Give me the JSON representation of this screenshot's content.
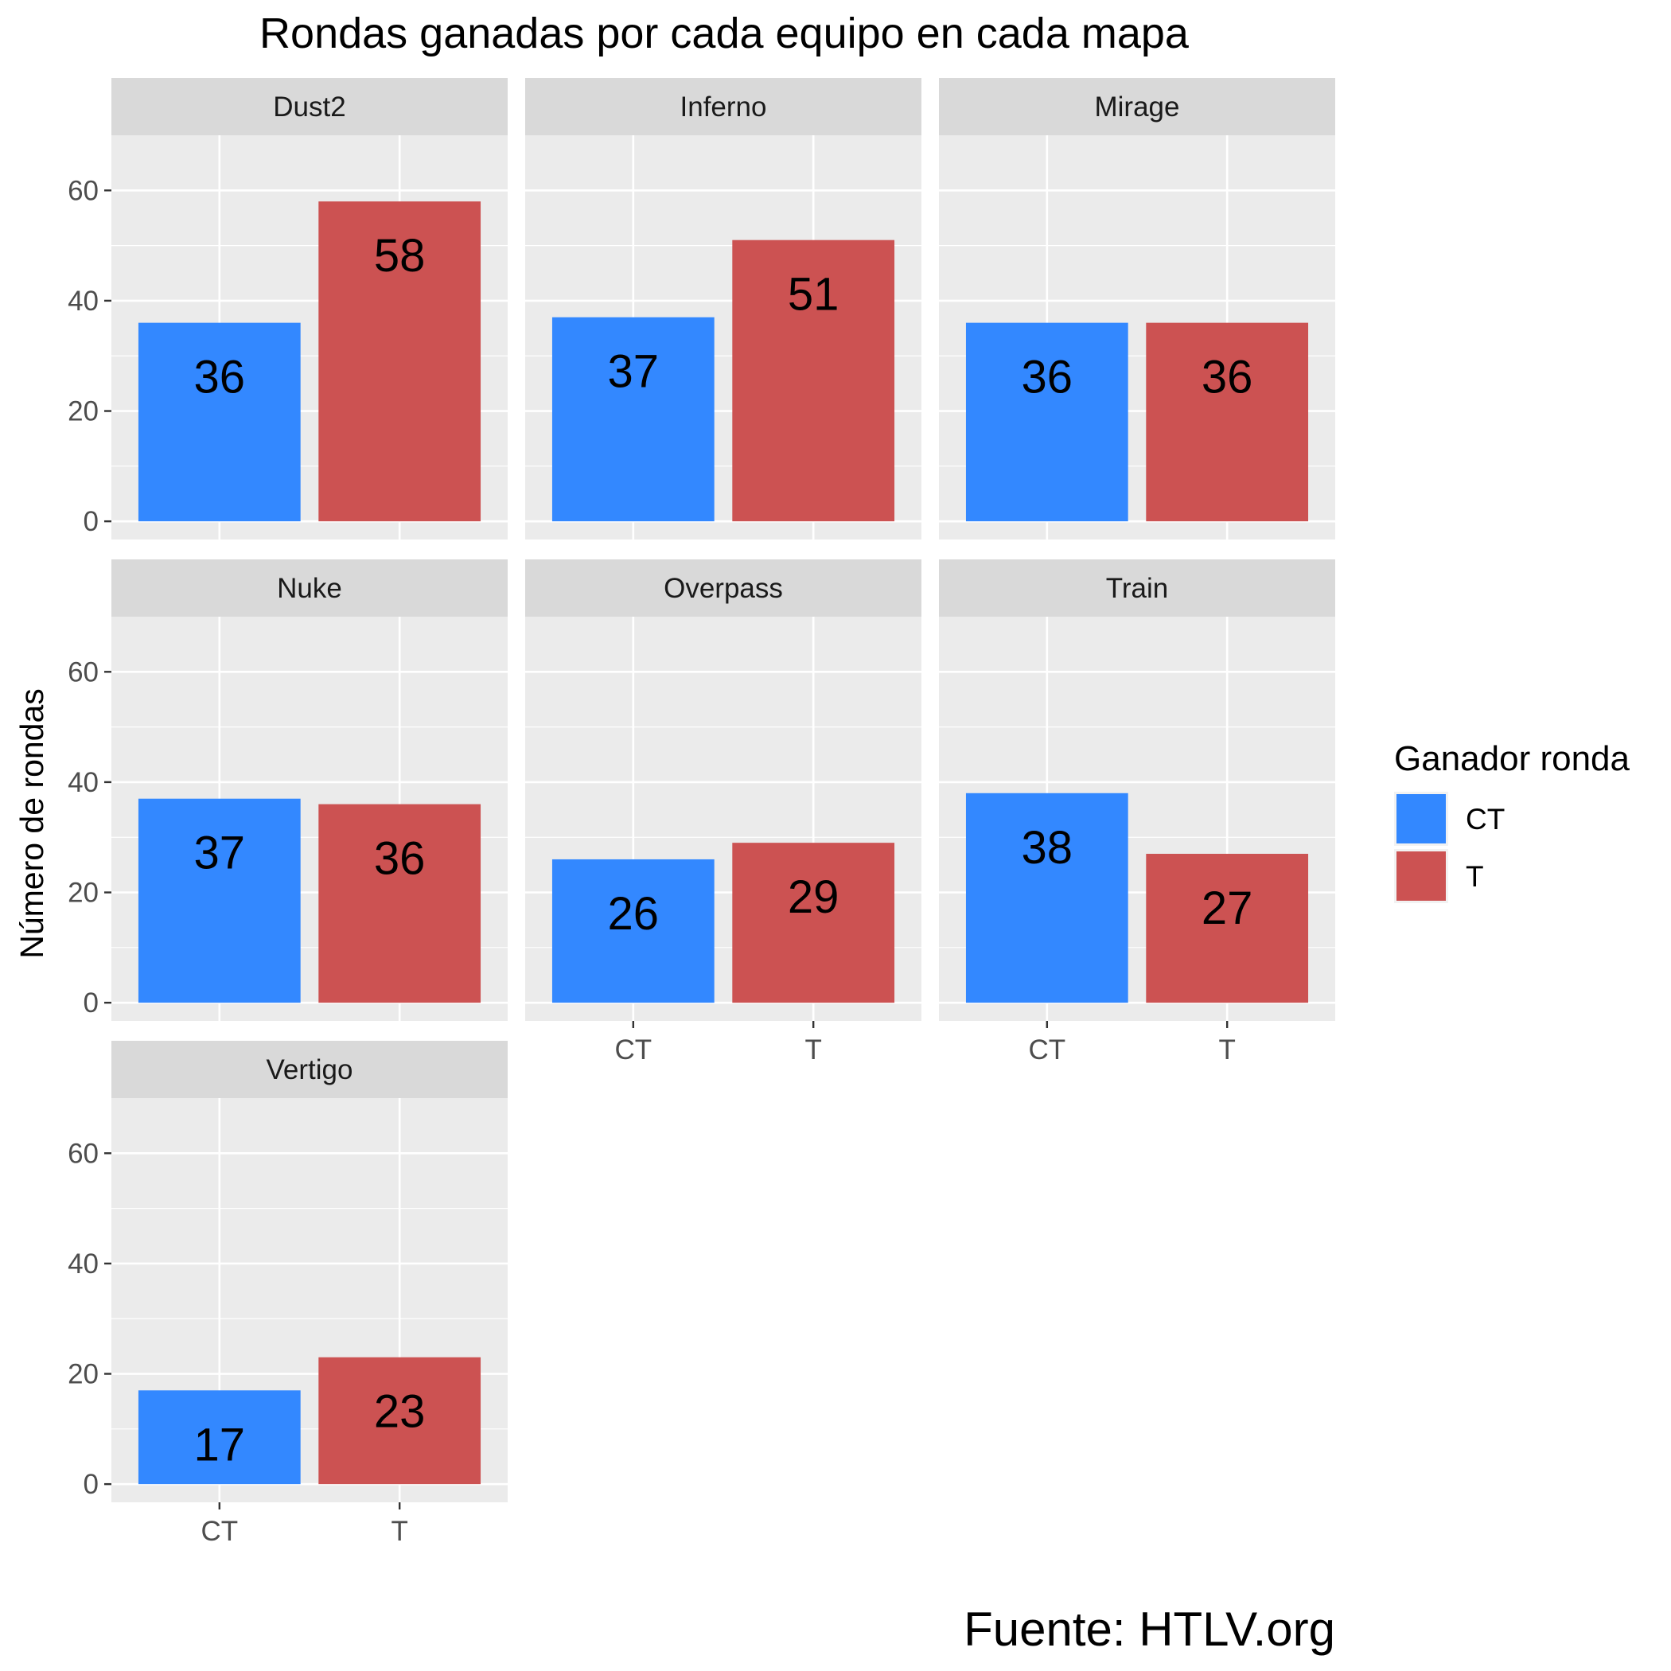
{
  "chart_data": {
    "type": "bar",
    "title": "Rondas ganadas por cada equipo en cada mapa",
    "ylabel": "Número de rondas",
    "xlabel": "",
    "ylim": [
      0,
      70
    ],
    "yticks": [
      0,
      20,
      40,
      60
    ],
    "categories": [
      "CT",
      "T"
    ],
    "facets": [
      {
        "name": "Dust2",
        "values": [
          36,
          58
        ]
      },
      {
        "name": "Inferno",
        "values": [
          37,
          51
        ]
      },
      {
        "name": "Mirage",
        "values": [
          36,
          36
        ]
      },
      {
        "name": "Nuke",
        "values": [
          37,
          36
        ]
      },
      {
        "name": "Overpass",
        "values": [
          26,
          29
        ]
      },
      {
        "name": "Train",
        "values": [
          38,
          27
        ]
      },
      {
        "name": "Vertigo",
        "values": [
          17,
          23
        ]
      }
    ],
    "legend": {
      "title": "Ganador ronda",
      "position": "right",
      "entries": [
        "CT",
        "T"
      ]
    },
    "caption": "Fuente: HTLV.org",
    "colors": {
      "CT": "#3388ff",
      "T": "#cc5252",
      "panel_bg": "#ebebeb",
      "strip_bg": "#d9d9d9",
      "grid": "#ffffff"
    },
    "grid": true
  }
}
